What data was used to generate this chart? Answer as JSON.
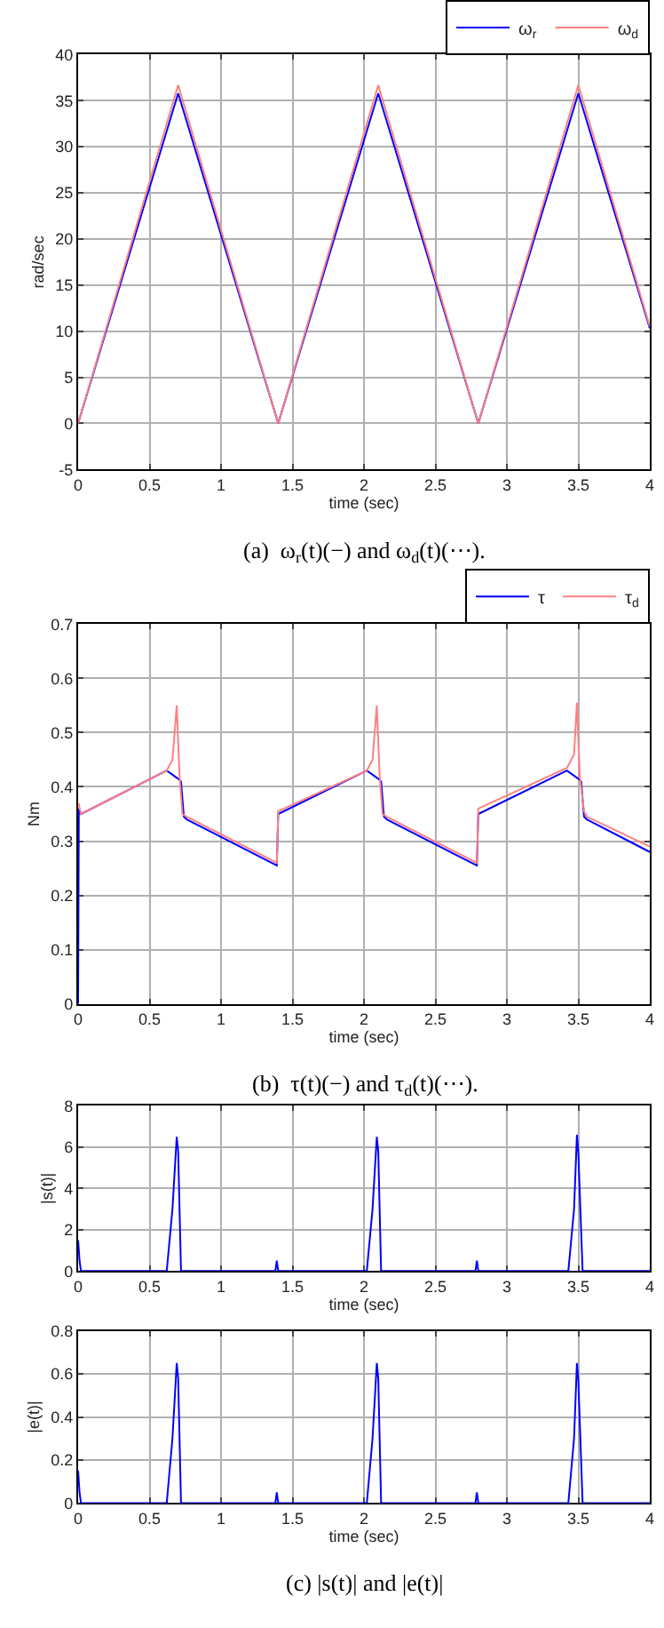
{
  "chart_data": [
    {
      "type": "line",
      "xlabel": "time (sec)",
      "ylabel": "rad/sec",
      "xlim": [
        0,
        4
      ],
      "xticks": [
        0,
        0.5,
        1,
        1.5,
        2,
        2.5,
        3,
        3.5,
        4
      ],
      "ylim": [
        -5,
        40
      ],
      "yticks": [
        -5,
        0,
        5,
        10,
        15,
        20,
        25,
        30,
        35,
        40
      ],
      "grid": true,
      "legend": "top right",
      "annotations": [
        "(a)  ω$_{r}$(t)(−) and ω$_{d}$(t)(⋯)."
      ],
      "series": [
        {
          "name": "ω$_{r}$",
          "color": "#0000ff",
          "x": [
            0,
            0.7,
            1.4,
            2.1,
            2.8,
            3.5,
            4
          ],
          "values": [
            0,
            35.8,
            0,
            35.8,
            0,
            35.8,
            10.3
          ]
        },
        {
          "name": "ω$_{d}$",
          "color": "#ff8080",
          "x": [
            0,
            0.7,
            1.4,
            2.1,
            2.8,
            3.5,
            4
          ],
          "values": [
            0,
            36.7,
            0,
            36.7,
            0,
            36.7,
            10.5
          ]
        }
      ]
    },
    {
      "type": "line",
      "xlabel": "time (sec)",
      "ylabel": "Nm",
      "xlim": [
        0,
        4
      ],
      "xticks": [
        0,
        0.5,
        1,
        1.5,
        2,
        2.5,
        3,
        3.5,
        4
      ],
      "ylim": [
        0,
        0.7
      ],
      "yticks": [
        0,
        0.1,
        0.2,
        0.3,
        0.4,
        0.5,
        0.6,
        0.7
      ],
      "grid": true,
      "legend": "top right",
      "annotations": [
        "(b)  τ(t)(−) and τ$_{d}$(t)(⋯)."
      ],
      "series": [
        {
          "name": "τ",
          "color": "#0000ff",
          "x": [
            0,
            0.005,
            0.02,
            0.62,
            0.7,
            0.72,
            0.74,
            0.76,
            1.39,
            1.4,
            2.02,
            2.1,
            2.12,
            2.14,
            2.16,
            2.79,
            2.8,
            3.42,
            3.5,
            3.52,
            3.54,
            3.56,
            4
          ],
          "values": [
            0,
            0.36,
            0.35,
            0.43,
            0.415,
            0.41,
            0.345,
            0.34,
            0.255,
            0.35,
            0.43,
            0.415,
            0.41,
            0.345,
            0.34,
            0.255,
            0.35,
            0.43,
            0.415,
            0.41,
            0.345,
            0.34,
            0.28
          ]
        },
        {
          "name": "τ$_{d}$",
          "color": "#ff8080",
          "x": [
            0.003,
            0.02,
            0.62,
            0.66,
            0.69,
            0.71,
            0.73,
            0.76,
            1.39,
            1.4,
            2.02,
            2.06,
            2.09,
            2.11,
            2.13,
            2.16,
            2.79,
            2.8,
            3.42,
            3.47,
            3.49,
            3.51,
            3.54,
            3.56,
            4
          ],
          "values": [
            0.37,
            0.35,
            0.43,
            0.45,
            0.55,
            0.42,
            0.35,
            0.345,
            0.26,
            0.355,
            0.43,
            0.45,
            0.55,
            0.42,
            0.35,
            0.345,
            0.26,
            0.36,
            0.435,
            0.46,
            0.555,
            0.42,
            0.355,
            0.345,
            0.29
          ]
        }
      ]
    },
    {
      "type": "line",
      "xlabel": "time (sec)",
      "ylabel": "|s(t)|",
      "xlim": [
        0,
        4
      ],
      "xticks": [
        0,
        0.5,
        1,
        1.5,
        2,
        2.5,
        3,
        3.5,
        4
      ],
      "ylim": [
        0,
        8
      ],
      "yticks": [
        0,
        2,
        4,
        6,
        8
      ],
      "grid": true,
      "series": [
        {
          "color": "#0000ff",
          "x": [
            0,
            0.01,
            0.02,
            0.62,
            0.66,
            0.69,
            0.7,
            0.72,
            1.38,
            1.39,
            1.4,
            2.02,
            2.06,
            2.09,
            2.1,
            2.12,
            2.78,
            2.79,
            2.8,
            3.43,
            3.47,
            3.49,
            3.5,
            3.53,
            4
          ],
          "values": [
            1.5,
            0.5,
            0,
            0,
            3,
            6.5,
            5.8,
            0,
            0,
            0.5,
            0,
            0,
            3,
            6.5,
            5.8,
            0,
            0,
            0.5,
            0,
            0,
            3,
            6.6,
            5.7,
            0,
            0
          ]
        }
      ]
    },
    {
      "type": "line",
      "xlabel": "time (sec)",
      "ylabel": "|e(t)|",
      "xlim": [
        0,
        4
      ],
      "xticks": [
        0,
        0.5,
        1,
        1.5,
        2,
        2.5,
        3,
        3.5,
        4
      ],
      "ylim": [
        0,
        0.8
      ],
      "yticks": [
        0,
        0.2,
        0.4,
        0.6,
        0.8
      ],
      "grid": true,
      "annotations": [
        "(c) |s(t)| and |e(t)|"
      ],
      "series": [
        {
          "color": "#0000ff",
          "x": [
            0,
            0.01,
            0.02,
            0.62,
            0.66,
            0.69,
            0.7,
            0.72,
            1.38,
            1.39,
            1.4,
            2.02,
            2.06,
            2.09,
            2.1,
            2.12,
            2.78,
            2.79,
            2.8,
            3.43,
            3.47,
            3.49,
            3.5,
            3.53,
            4
          ],
          "values": [
            0.15,
            0.05,
            0,
            0,
            0.3,
            0.65,
            0.58,
            0,
            0,
            0.05,
            0,
            0,
            0.3,
            0.65,
            0.58,
            0,
            0,
            0.05,
            0,
            0,
            0.3,
            0.65,
            0.57,
            0,
            0
          ]
        }
      ]
    }
  ]
}
